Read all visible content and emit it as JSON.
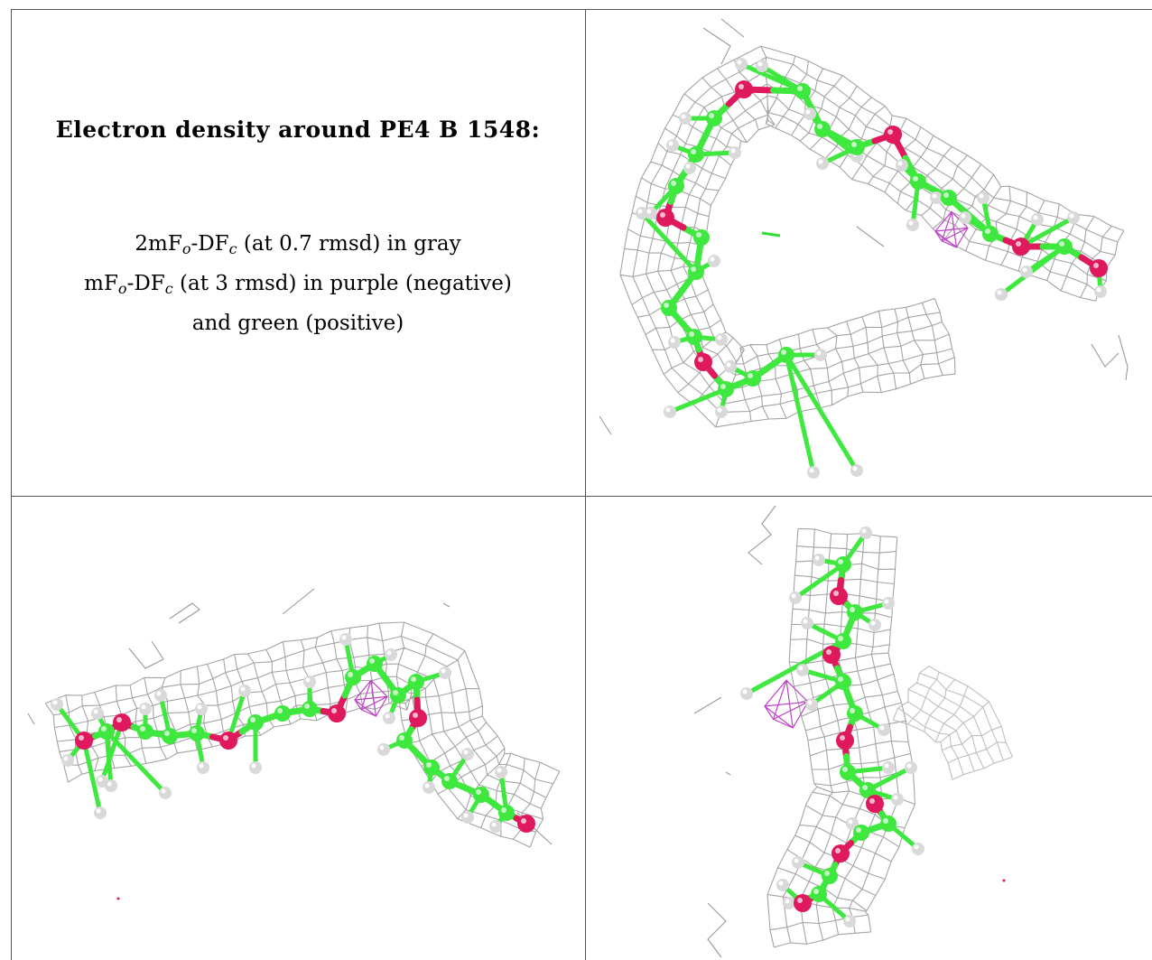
{
  "panel_text": {
    "title": "Electron density around PE4 B 1548:",
    "line1": {
      "pre": "2mF",
      "sub1": "o",
      "mid": "-DF",
      "sub2": "c",
      "post": " (at 0.7 rmsd) in gray"
    },
    "line2": {
      "pre": "mF",
      "sub1": "o",
      "mid": "-DF",
      "sub2": "c",
      "post": " (at 3 rmsd) in purple (negative)"
    },
    "line3": "and green (positive)"
  },
  "colors": {
    "carbon": "#3fe83f",
    "oxygen": "#e0185e",
    "hydrogen": "#d9d9d9",
    "mesh_2fofc": "#9a9a9a",
    "mesh_negative": "#c040c8",
    "mesh_positive": "#30e030",
    "grid_line": "#555555"
  },
  "views": [
    {
      "name": "top-right-view"
    },
    {
      "name": "bottom-left-view"
    },
    {
      "name": "bottom-right-view"
    }
  ]
}
